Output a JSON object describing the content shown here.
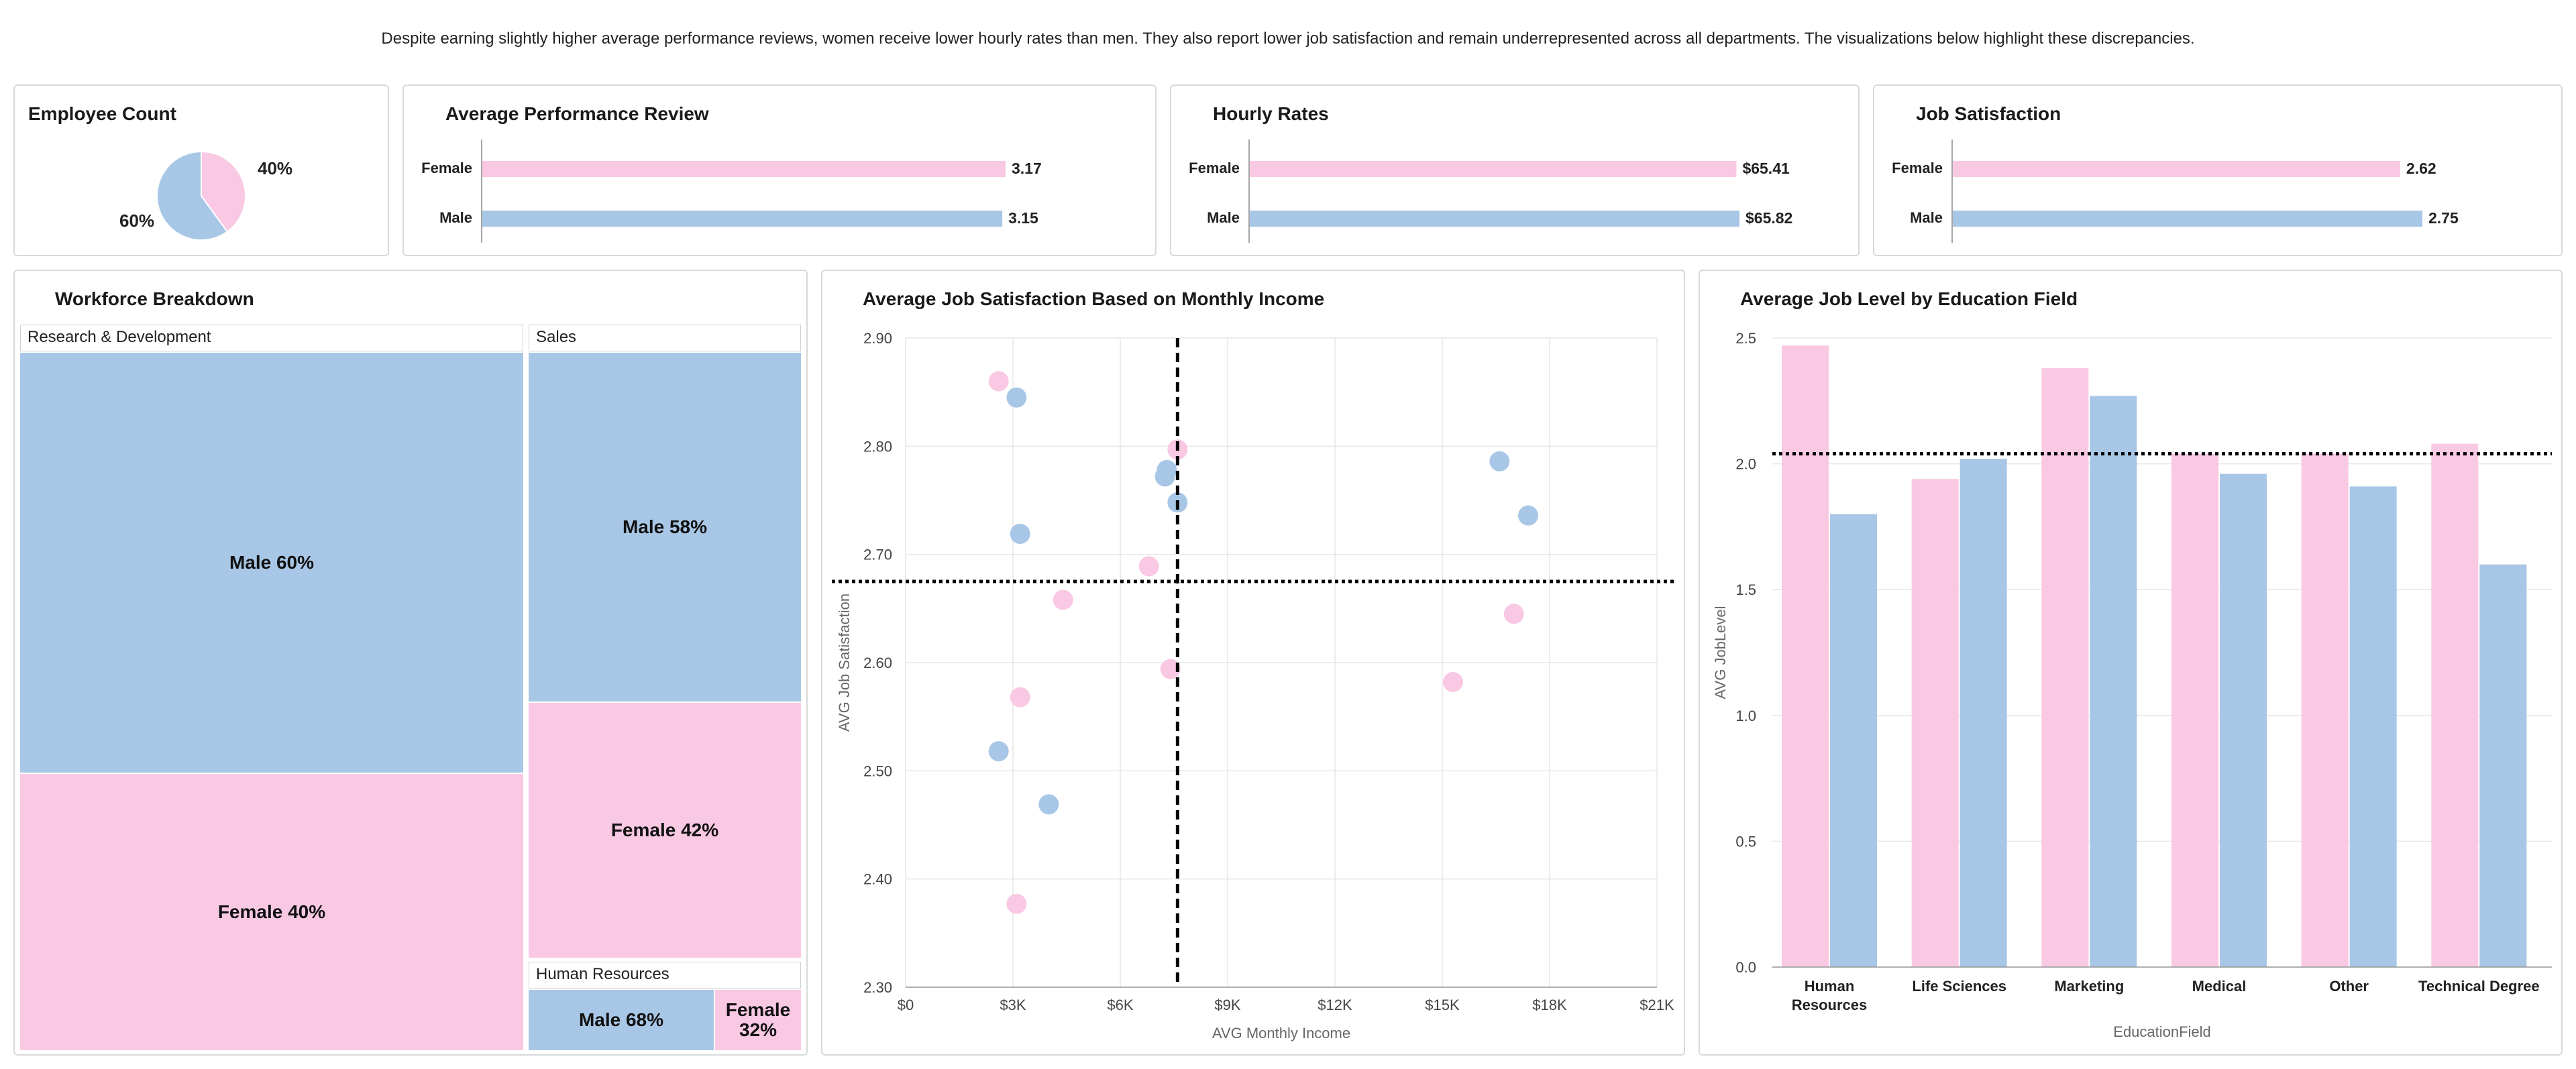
{
  "colors": {
    "female": "#f9c9e4",
    "male": "#a8c7e6",
    "border": "#d9d9d9",
    "grid": "#e6e6e6"
  },
  "intro_text": "Despite earning slightly higher average performance reviews, women receive lower hourly rates than men. They also report lower job satisfaction and remain underrepresented across all departments. The visualizations below highlight these discrepancies.",
  "employee_count": {
    "title": "Employee Count",
    "female_label": "40%",
    "male_label": "60%"
  },
  "workforce": {
    "title": "Workforce Breakdown",
    "rd": {
      "name": "Research & Development",
      "male": "Male 60%",
      "female": "Female 40%"
    },
    "sales": {
      "name": "Sales",
      "male": "Male 58%",
      "female": "Female 42%"
    },
    "hr": {
      "name": "Human Resources",
      "male": "Male 68%",
      "female_line1": "Female",
      "female_line2": "32%"
    }
  },
  "chart_data": [
    {
      "id": "employee-count",
      "type": "pie",
      "title": "Employee Count",
      "labels": [
        "Female",
        "Male"
      ],
      "values": [
        40,
        60
      ],
      "value_labels": [
        "40%",
        "60%"
      ]
    },
    {
      "id": "performance",
      "type": "bar",
      "orientation": "horizontal",
      "title": "Average Performance Review",
      "categories": [
        "Female",
        "Male"
      ],
      "values": [
        3.17,
        3.15
      ],
      "value_labels": [
        "3.17",
        "3.15"
      ]
    },
    {
      "id": "hourly",
      "type": "bar",
      "orientation": "horizontal",
      "title": "Hourly Rates",
      "categories": [
        "Female",
        "Male"
      ],
      "values": [
        65.41,
        65.82
      ],
      "value_labels": [
        "$65.41",
        "$65.82"
      ]
    },
    {
      "id": "jobsat",
      "type": "bar",
      "orientation": "horizontal",
      "title": "Job Satisfaction",
      "categories": [
        "Female",
        "Male"
      ],
      "values": [
        2.62,
        2.75
      ],
      "value_labels": [
        "2.62",
        "2.75"
      ]
    },
    {
      "id": "workforce",
      "type": "treemap",
      "title": "Workforce Breakdown",
      "groups": [
        {
          "name": "Research & Development",
          "male_pct": 60,
          "female_pct": 40
        },
        {
          "name": "Sales",
          "male_pct": 58,
          "female_pct": 42
        },
        {
          "name": "Human Resources",
          "male_pct": 68,
          "female_pct": 32
        }
      ]
    },
    {
      "id": "scatter",
      "type": "scatter",
      "title": "Average Job Satisfaction Based on Monthly Income",
      "xlabel": "AVG Monthly Income",
      "ylabel": "AVG Job Satisfaction",
      "xlim": [
        0,
        21000
      ],
      "ylim": [
        2.3,
        2.9
      ],
      "x_ticks": [
        0,
        3000,
        6000,
        9000,
        12000,
        15000,
        18000,
        21000
      ],
      "x_tick_labels": [
        "$0",
        "$3K",
        "$6K",
        "$9K",
        "$12K",
        "$15K",
        "$18K",
        "$21K"
      ],
      "y_ticks": [
        2.3,
        2.4,
        2.5,
        2.6,
        2.7,
        2.8,
        2.9
      ],
      "y_tick_labels": [
        "2.30",
        "2.40",
        "2.50",
        "2.60",
        "2.70",
        "2.80",
        "2.90"
      ],
      "ref_x": 7600,
      "ref_y": 2.675,
      "series": [
        {
          "name": "Female",
          "points": [
            [
              2600,
              2.86
            ],
            [
              7600,
              2.797
            ],
            [
              6800,
              2.689
            ],
            [
              4400,
              2.658
            ],
            [
              7400,
              2.594
            ],
            [
              3200,
              2.568
            ],
            [
              3100,
              2.377
            ],
            [
              15300,
              2.582
            ],
            [
              17000,
              2.645
            ]
          ]
        },
        {
          "name": "Male",
          "points": [
            [
              3100,
              2.845
            ],
            [
              7300,
              2.778
            ],
            [
              7250,
              2.772
            ],
            [
              7600,
              2.748
            ],
            [
              3200,
              2.719
            ],
            [
              2600,
              2.518
            ],
            [
              4000,
              2.469
            ],
            [
              16600,
              2.786
            ],
            [
              17400,
              2.736
            ]
          ]
        }
      ]
    },
    {
      "id": "joblevel",
      "type": "bar",
      "title": "Average Job Level by Education Field",
      "xlabel": "EducationField",
      "ylabel": "AVG JobLevel",
      "ylim": [
        0,
        2.5
      ],
      "y_ticks": [
        0,
        0.5,
        1.0,
        1.5,
        2.0,
        2.5
      ],
      "y_tick_labels": [
        "0.0",
        "0.5",
        "1.0",
        "1.5",
        "2.0",
        "2.5"
      ],
      "categories": [
        "Human Resources",
        "Life Sciences",
        "Marketing",
        "Medical",
        "Other",
        "Technical Degree"
      ],
      "category_lines": [
        [
          "Human",
          "Resources"
        ],
        [
          "Life Sciences"
        ],
        [
          "Marketing"
        ],
        [
          "Medical"
        ],
        [
          "Other"
        ],
        [
          "Technical Degree"
        ]
      ],
      "ref_y": 2.04,
      "series": [
        {
          "name": "Female",
          "values": [
            2.47,
            1.94,
            2.38,
            2.04,
            2.04,
            2.08
          ]
        },
        {
          "name": "Male",
          "values": [
            1.8,
            2.02,
            2.27,
            1.96,
            1.91,
            1.6
          ]
        }
      ]
    }
  ]
}
